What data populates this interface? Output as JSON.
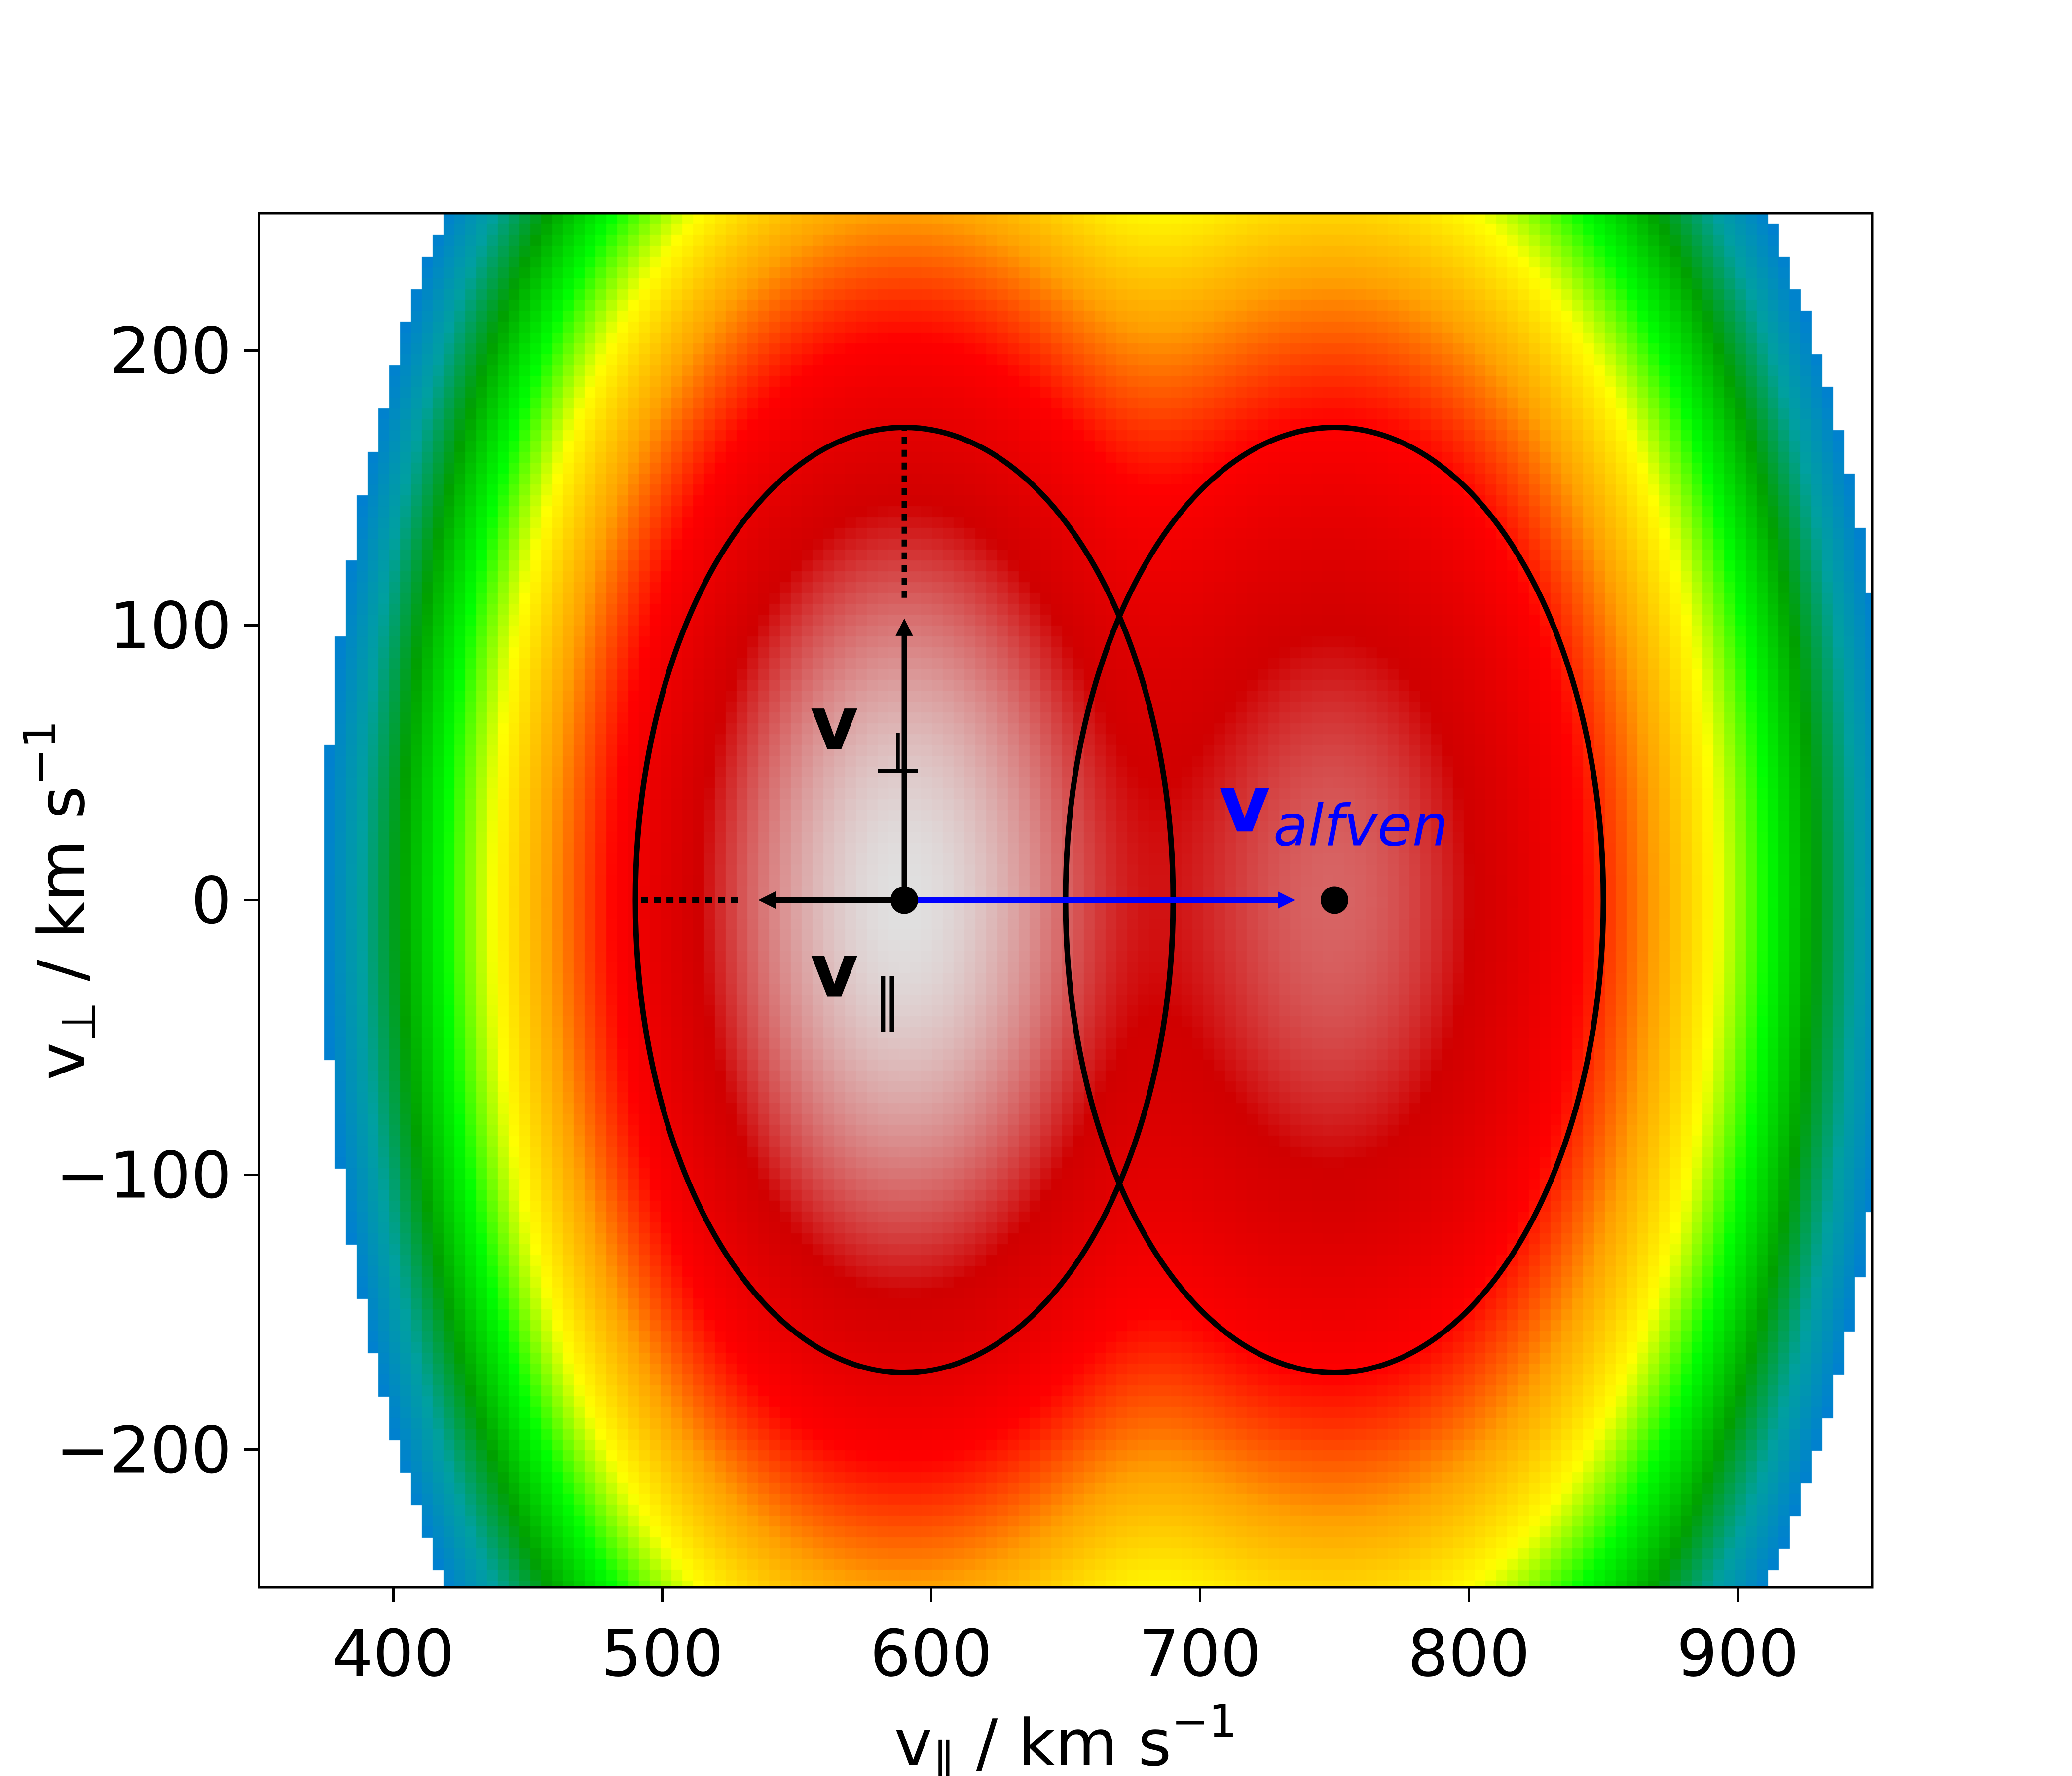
{
  "chart_data": {
    "type": "heatmap",
    "title": "",
    "xlabel": "v",
    "xlabel_subscript": "∥",
    "xlabel_units": " / km s",
    "xlabel_sup": "−1",
    "ylabel": "v",
    "ylabel_subscript": "⊥",
    "ylabel_units": " / km s",
    "ylabel_sup": "−1",
    "xlim": [
      350,
      950
    ],
    "ylim": [
      -250,
      250
    ],
    "x_ticks": [
      400,
      500,
      600,
      700,
      800,
      900
    ],
    "x_tick_labels": [
      "400",
      "500",
      "600",
      "700",
      "800",
      "900"
    ],
    "y_ticks": [
      200,
      100,
      0,
      -100,
      -200
    ],
    "y_tick_labels": [
      "200",
      "100",
      "0",
      "−100",
      "−200"
    ],
    "grid": false,
    "colormap": [
      "#0080d0",
      "#00a0a0",
      "#00a000",
      "#00ff00",
      "#ffff00",
      "#ffa000",
      "#ff0000",
      "#d00000",
      "#e0e0e0"
    ],
    "distribution": {
      "core": {
        "center": [
          590,
          0
        ],
        "sigma_par": 45,
        "sigma_perp": 85
      },
      "beam": {
        "center": [
          750,
          0
        ],
        "sigma_par": 45,
        "sigma_perp": 85,
        "relative_amplitude": 0.45
      }
    },
    "ellipses": [
      {
        "center": [
          590,
          0
        ],
        "half_width": 100,
        "half_height": 172
      },
      {
        "center": [
          750,
          0
        ],
        "half_width": 100,
        "half_height": 172
      }
    ],
    "points": [
      [
        590,
        0
      ],
      [
        750,
        0
      ]
    ],
    "vectors": [
      {
        "from": [
          590,
          0
        ],
        "to": [
          590,
          110
        ],
        "color": "#000000",
        "dotted_to": [
          590,
          172
        ]
      },
      {
        "from": [
          590,
          0
        ],
        "to": [
          528,
          0
        ],
        "color": "#000000",
        "dotted_to": [
          490,
          0
        ]
      },
      {
        "from": [
          590,
          0
        ],
        "to": [
          743,
          0
        ],
        "color": "#0000ff"
      }
    ],
    "annotations": [
      {
        "text": "v",
        "subscript": "⊥",
        "at": [
          555,
          55
        ],
        "color": "#000000"
      },
      {
        "text": "v",
        "subscript": "∥",
        "at": [
          555,
          -35
        ],
        "color": "#000000"
      },
      {
        "text": "v",
        "subscript": "alfven",
        "at": [
          707,
          25
        ],
        "color": "#0000ff"
      }
    ]
  }
}
